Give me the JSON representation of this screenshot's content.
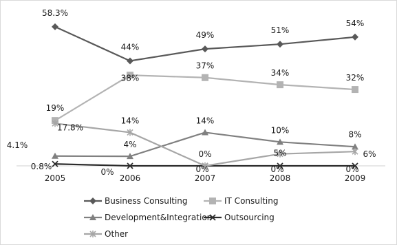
{
  "chart_data": {
    "type": "line",
    "title": "",
    "xlabel": "",
    "ylabel": "",
    "categories": [
      "2005",
      "2006",
      "2007",
      "2008",
      "2009"
    ],
    "ylim": [
      0,
      60
    ],
    "grid": false,
    "legend_position": "bottom",
    "series": [
      {
        "name": "Business Consulting",
        "values": [
          58.3,
          44,
          49,
          51,
          54
        ],
        "labels": [
          "58.3%",
          "44%",
          "49%",
          "51%",
          "54%"
        ],
        "color": "#595959",
        "marker": "diamond"
      },
      {
        "name": "IT Consulting",
        "values": [
          19,
          38,
          37,
          34,
          32
        ],
        "labels": [
          "19%",
          "38%",
          "37%",
          "34%",
          "32%"
        ],
        "color": "#b3b3b3",
        "marker": "square"
      },
      {
        "name": "Development&Integration",
        "values": [
          4.1,
          4,
          14,
          10,
          8
        ],
        "labels": [
          "4.1%",
          "4%",
          "14%",
          "10%",
          "8%"
        ],
        "color": "#808080",
        "marker": "triangle"
      },
      {
        "name": "Outsourcing",
        "values": [
          0.8,
          0,
          0,
          0,
          0
        ],
        "labels": [
          "0.8%",
          "0%",
          "0%",
          "0%",
          "0%"
        ],
        "color": "#2b2b2b",
        "marker": "x"
      },
      {
        "name": "Other",
        "values": [
          17.8,
          14,
          0,
          5,
          6
        ],
        "labels": [
          "17.8%",
          "14%",
          "0%",
          "5%",
          "6%"
        ],
        "color": "#a6a6a6",
        "marker": "star"
      }
    ]
  }
}
